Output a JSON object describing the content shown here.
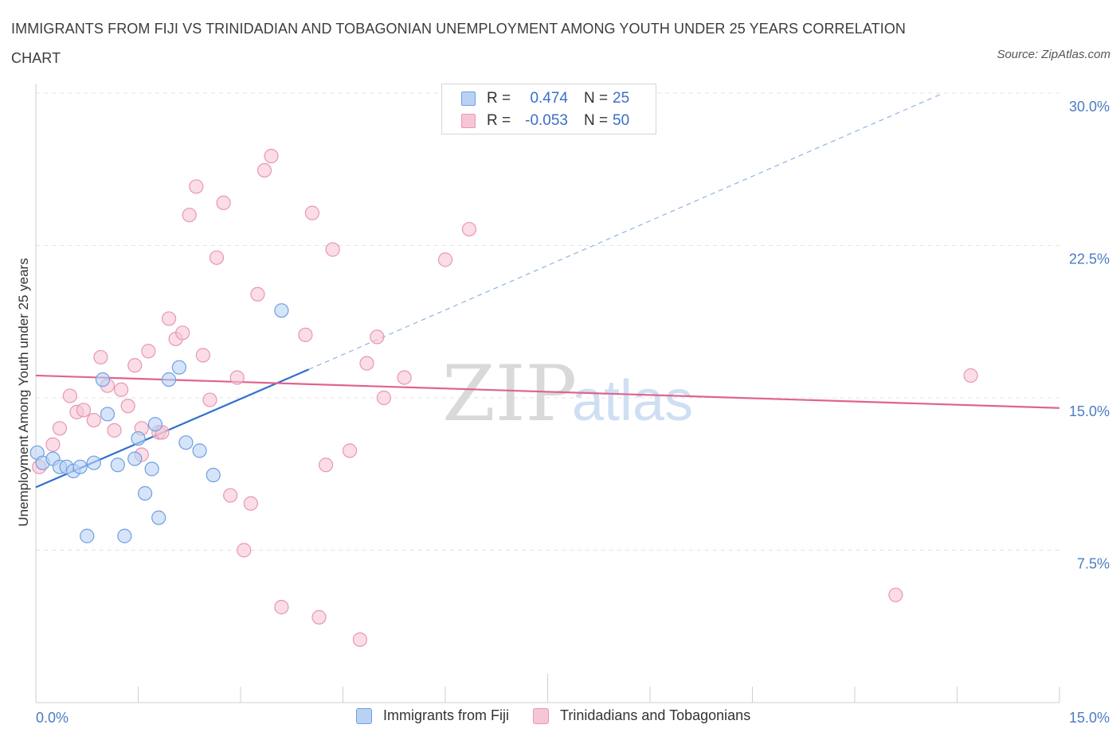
{
  "title": "IMMIGRANTS FROM FIJI VS TRINIDADIAN AND TOBAGONIAN UNEMPLOYMENT AMONG YOUTH UNDER 25 YEARS CORRELATION CHART",
  "source": "Source: ZipAtlas.com",
  "watermark": {
    "zip": "ZIP",
    "atlas": "atlas"
  },
  "legend": {
    "series1": {
      "r_label": "R =",
      "r_value": "0.474",
      "n_label": "N =",
      "n_value": "25"
    },
    "series2": {
      "r_label": "R =",
      "r_value": "-0.053",
      "n_label": "N =",
      "n_value": "50"
    }
  },
  "chart_data": {
    "type": "scatter",
    "title": "IMMIGRANTS FROM FIJI VS TRINIDADIAN AND TOBAGONIAN UNEMPLOYMENT AMONG YOUTH UNDER 25 YEARS CORRELATION CHART",
    "xlabel": "",
    "ylabel": "Unemployment Among Youth under 25 years",
    "xlim": [
      0,
      15
    ],
    "ylim": [
      0,
      30
    ],
    "x_tick_labels": [
      "0.0%",
      "15.0%"
    ],
    "y_ticks": [
      7.5,
      15,
      22.5,
      30
    ],
    "y_tick_labels": [
      "7.5%",
      "15.0%",
      "22.5%",
      "30.0%"
    ],
    "grid": true,
    "series": [
      {
        "name": "Immigrants from Fiji",
        "color": "#6f9fe0",
        "fill": "#b9d2f4",
        "line_color": "#2f6fd0",
        "trend": {
          "x0": 0,
          "y0": 10.6,
          "x1": 4,
          "y1": 16.4,
          "dashed_to_x": 13.3,
          "dashed_to_y": 30.0
        },
        "points": [
          [
            0.02,
            12.3
          ],
          [
            0.1,
            11.8
          ],
          [
            0.25,
            12.0
          ],
          [
            0.35,
            11.6
          ],
          [
            0.45,
            11.6
          ],
          [
            0.55,
            11.4
          ],
          [
            0.65,
            11.6
          ],
          [
            0.85,
            11.8
          ],
          [
            0.98,
            15.9
          ],
          [
            1.05,
            14.2
          ],
          [
            1.2,
            11.7
          ],
          [
            1.3,
            8.2
          ],
          [
            1.45,
            12.0
          ],
          [
            1.6,
            10.3
          ],
          [
            1.7,
            11.5
          ],
          [
            1.75,
            13.7
          ],
          [
            1.8,
            9.1
          ],
          [
            1.95,
            15.9
          ],
          [
            2.1,
            16.5
          ],
          [
            2.2,
            12.8
          ],
          [
            2.4,
            12.4
          ],
          [
            2.6,
            11.2
          ],
          [
            3.6,
            19.3
          ],
          [
            0.75,
            8.2
          ],
          [
            1.5,
            13.0
          ]
        ]
      },
      {
        "name": "Trinidadians and Tobagonians",
        "color": "#e996b3",
        "fill": "#f7c6d6",
        "line_color": "#e0638e",
        "trend": {
          "x0": 0,
          "y0": 16.1,
          "x1": 15,
          "y1": 14.5
        },
        "points": [
          [
            0.05,
            11.6
          ],
          [
            0.25,
            12.7
          ],
          [
            0.35,
            13.5
          ],
          [
            0.5,
            15.1
          ],
          [
            0.6,
            14.3
          ],
          [
            0.7,
            14.4
          ],
          [
            0.85,
            13.9
          ],
          [
            0.95,
            17.0
          ],
          [
            1.05,
            15.6
          ],
          [
            1.15,
            13.4
          ],
          [
            1.25,
            15.4
          ],
          [
            1.35,
            14.6
          ],
          [
            1.45,
            16.6
          ],
          [
            1.55,
            13.5
          ],
          [
            1.65,
            17.3
          ],
          [
            1.8,
            13.3
          ],
          [
            1.85,
            13.3
          ],
          [
            1.95,
            18.9
          ],
          [
            2.05,
            17.9
          ],
          [
            2.15,
            18.2
          ],
          [
            2.25,
            24.0
          ],
          [
            2.35,
            25.4
          ],
          [
            2.45,
            17.1
          ],
          [
            2.55,
            14.9
          ],
          [
            2.65,
            21.9
          ],
          [
            2.75,
            24.6
          ],
          [
            2.85,
            10.2
          ],
          [
            2.95,
            16.0
          ],
          [
            3.05,
            7.5
          ],
          [
            3.15,
            9.8
          ],
          [
            3.25,
            20.1
          ],
          [
            3.35,
            26.2
          ],
          [
            3.45,
            26.9
          ],
          [
            3.6,
            4.7
          ],
          [
            3.95,
            18.1
          ],
          [
            4.05,
            24.1
          ],
          [
            4.15,
            4.2
          ],
          [
            4.25,
            11.7
          ],
          [
            4.35,
            22.3
          ],
          [
            4.6,
            12.4
          ],
          [
            4.75,
            3.1
          ],
          [
            4.85,
            16.7
          ],
          [
            5.0,
            18.0
          ],
          [
            5.1,
            15.0
          ],
          [
            5.4,
            16.0
          ],
          [
            6.0,
            21.8
          ],
          [
            6.35,
            23.3
          ],
          [
            12.6,
            5.3
          ],
          [
            13.7,
            16.1
          ],
          [
            1.55,
            12.2
          ]
        ]
      }
    ]
  }
}
